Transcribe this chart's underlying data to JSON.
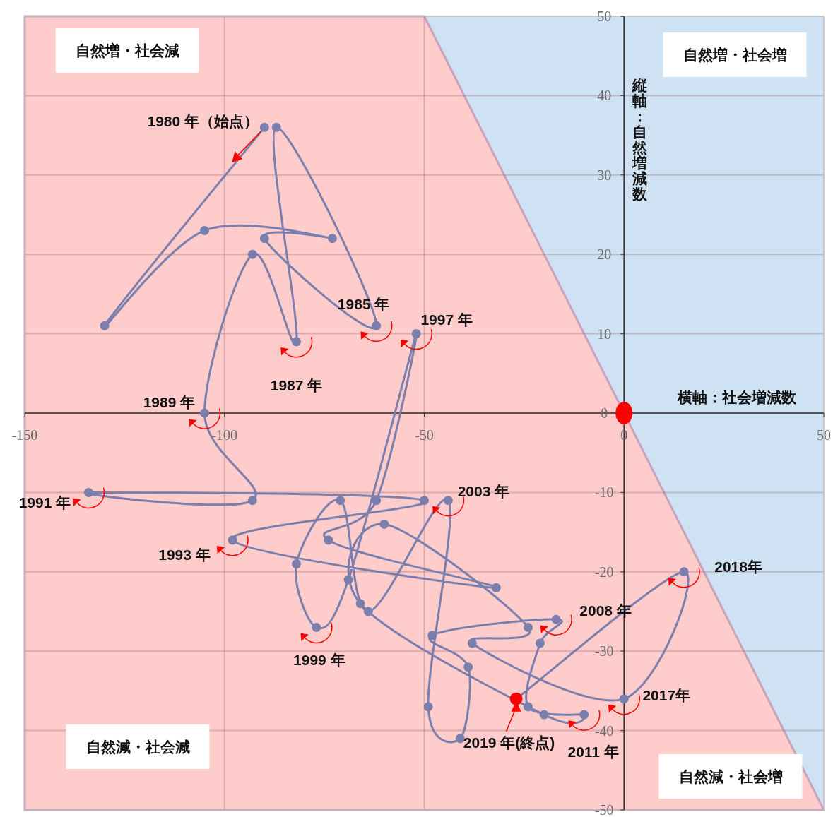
{
  "chart_data": {
    "type": "line",
    "xlabel": "横軸：社会増減数",
    "ylabel": "縦軸：自然増減数",
    "xlim": [
      -150,
      50
    ],
    "ylim": [
      -50,
      50
    ],
    "xticks": [
      -150,
      -100,
      -50,
      0,
      50
    ],
    "yticks": [
      -50,
      -40,
      -30,
      -20,
      -10,
      0,
      10,
      20,
      30,
      40,
      50
    ],
    "grid": true,
    "marker": "circle",
    "line_style": "solid",
    "series": [
      {
        "type": "line",
        "color": "#7b7fad",
        "x": [
          -90,
          -130,
          -105,
          -73,
          -90,
          -62,
          -87,
          -82,
          -93,
          -105,
          -93,
          -134,
          -50,
          -98,
          -32,
          -74,
          -62,
          -52,
          -69,
          -77,
          -82,
          -71,
          -64,
          -44,
          -49,
          -41,
          -39,
          -48,
          -17,
          -21,
          -24,
          -10,
          -20,
          -66,
          -60,
          -24,
          -38,
          0,
          15,
          -27
        ],
        "values": [
          36,
          11,
          23,
          22,
          22,
          11,
          36,
          9,
          20,
          0,
          -11,
          -10,
          -11,
          -16,
          -22,
          -16,
          -11,
          10,
          -21,
          -27,
          -19,
          -11,
          -25,
          -11,
          -37,
          -41,
          -32,
          -28,
          -26,
          -29,
          -37,
          -38,
          -38,
          -24,
          -14,
          -27,
          -29,
          -36,
          -20,
          -36
        ],
        "colors": [
          "#7b7fad",
          "#7b7fad",
          "#7b7fad",
          "#7b7fad",
          "#7b7fad",
          "#7b7fad",
          "#7b7fad",
          "#7b7fad",
          "#7b7fad",
          "#7b7fad",
          "#7b7fad",
          "#7b7fad",
          "#7b7fad",
          "#7b7fad",
          "#7b7fad",
          "#7b7fad",
          "#7b7fad",
          "#7b7fad",
          "#7b7fad",
          "#7b7fad",
          "#7b7fad",
          "#7b7fad",
          "#7b7fad",
          "#7b7fad",
          "#7b7fad",
          "#7b7fad",
          "#7b7fad",
          "#7b7fad",
          "#7b7fad",
          "#7b7fad",
          "#7b7fad",
          "#7b7fad",
          "#7b7fad",
          "#7b7fad",
          "#7b7fad",
          "#7b7fad",
          "#7b7fad",
          "#7b7fad",
          "#7b7fad",
          "#ff0000"
        ]
      }
    ],
    "annotations": [
      "自然増・社会減",
      "自然増・社会増",
      "自然減・社会減",
      "自然減・社会増",
      {
        "text": "1980 年（始点）",
        "x": -90,
        "y": 36
      },
      {
        "text": "1985 年",
        "x": -62,
        "y": 11
      },
      {
        "text": "1987 年",
        "x": -82,
        "y": 9
      },
      {
        "text": "1989 年",
        "x": -105,
        "y": 0
      },
      {
        "text": "1991 年",
        "x": -134,
        "y": -10
      },
      {
        "text": "1993 年",
        "x": -98,
        "y": -16
      },
      {
        "text": "1997 年",
        "x": -52,
        "y": 10
      },
      {
        "text": "1999 年",
        "x": -77,
        "y": -27
      },
      {
        "text": "2003 年",
        "x": -44,
        "y": -11
      },
      {
        "text": "2008 年",
        "x": -17,
        "y": -26
      },
      {
        "text": "2011 年",
        "x": -10,
        "y": -38
      },
      {
        "text": "2017年",
        "x": 0,
        "y": -36
      },
      {
        "text": "2018年",
        "x": 15,
        "y": -20
      },
      {
        "text": "2019 年(終点)",
        "x": -27,
        "y": -36
      }
    ]
  }
}
